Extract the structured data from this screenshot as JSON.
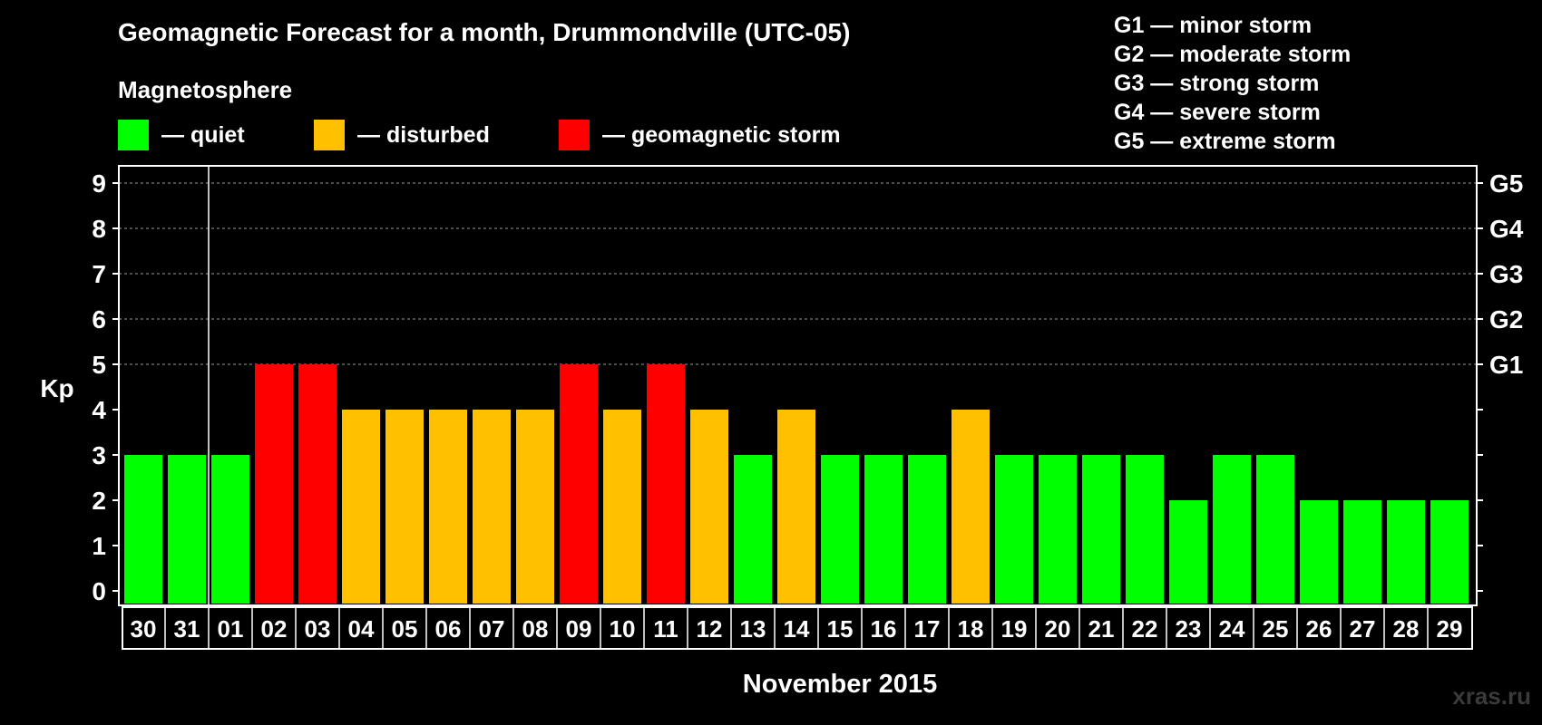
{
  "chart_data": {
    "type": "bar",
    "title": "Geomagnetic Forecast for a month, Drummondville (UTC-05)",
    "subtitle": "Magnetosphere",
    "ylabel": "Kp",
    "xlabel": "November 2015",
    "ylim": [
      0,
      9
    ],
    "yticks": [
      "0",
      "1",
      "2",
      "3",
      "4",
      "5",
      "6",
      "7",
      "8",
      "9"
    ],
    "right_ticks": [
      {
        "kp": 5,
        "label": "G1"
      },
      {
        "kp": 6,
        "label": "G2"
      },
      {
        "kp": 7,
        "label": "G3"
      },
      {
        "kp": 8,
        "label": "G4"
      },
      {
        "kp": 9,
        "label": "G5"
      }
    ],
    "categories": [
      "30",
      "31",
      "01",
      "02",
      "03",
      "04",
      "05",
      "06",
      "07",
      "08",
      "09",
      "10",
      "11",
      "12",
      "13",
      "14",
      "15",
      "16",
      "17",
      "18",
      "19",
      "20",
      "21",
      "22",
      "23",
      "24",
      "25",
      "26",
      "27",
      "28",
      "29"
    ],
    "values": [
      3,
      3,
      3,
      5,
      5,
      4,
      4,
      4,
      4,
      4,
      5,
      4,
      5,
      4,
      3,
      4,
      3,
      3,
      3,
      4,
      3,
      3,
      3,
      3,
      2,
      3,
      3,
      2,
      2,
      2,
      2
    ],
    "status": [
      "quiet",
      "quiet",
      "quiet",
      "storm",
      "storm",
      "disturbed",
      "disturbed",
      "disturbed",
      "disturbed",
      "disturbed",
      "storm",
      "disturbed",
      "storm",
      "disturbed",
      "quiet",
      "disturbed",
      "quiet",
      "quiet",
      "quiet",
      "disturbed",
      "quiet",
      "quiet",
      "quiet",
      "quiet",
      "quiet",
      "quiet",
      "quiet",
      "quiet",
      "quiet",
      "quiet",
      "quiet"
    ],
    "month_separator_after_index": 1,
    "gridlines_at": [
      5,
      6,
      7,
      8,
      9
    ]
  },
  "legend": {
    "items": [
      {
        "key": "quiet",
        "label": "— quiet",
        "color": "#00ff00"
      },
      {
        "key": "disturbed",
        "label": "— disturbed",
        "color": "#ffc000"
      },
      {
        "key": "storm",
        "label": "— geomagnetic storm",
        "color": "#ff0000"
      }
    ]
  },
  "g_legend": [
    "G1 — minor storm",
    "G2 — moderate storm",
    "G3 — strong storm",
    "G4 — severe storm",
    "G5 — extreme storm"
  ],
  "watermark": "xras.ru"
}
